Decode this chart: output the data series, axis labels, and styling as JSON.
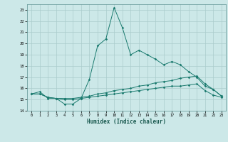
{
  "title": "",
  "xlabel": "Humidex (Indice chaleur)",
  "background_color": "#cce8e8",
  "line_color": "#1a7a6e",
  "grid_color": "#aacccc",
  "xlim": [
    -0.5,
    23.5
  ],
  "ylim": [
    14,
    23.5
  ],
  "yticks": [
    14,
    15,
    16,
    17,
    18,
    19,
    20,
    21,
    22,
    23
  ],
  "xticks": [
    0,
    1,
    2,
    3,
    4,
    5,
    6,
    7,
    8,
    9,
    10,
    11,
    12,
    13,
    14,
    15,
    16,
    17,
    18,
    19,
    20,
    21,
    22,
    23
  ],
  "series": [
    {
      "x": [
        0,
        1,
        2,
        3,
        4,
        5,
        6,
        7,
        8,
        9,
        10,
        11,
        12,
        13,
        14,
        15,
        16,
        17,
        18,
        19,
        20,
        21,
        22,
        23
      ],
      "y": [
        15.5,
        15.7,
        15.1,
        15.1,
        14.6,
        14.6,
        15.1,
        16.8,
        19.8,
        20.4,
        23.2,
        21.4,
        19.0,
        19.4,
        19.0,
        18.6,
        18.1,
        18.4,
        18.1,
        17.5,
        17.0,
        16.2,
        15.9,
        15.3
      ]
    },
    {
      "x": [
        0,
        1,
        2,
        3,
        4,
        5,
        6,
        7,
        8,
        9,
        10,
        11,
        12,
        13,
        14,
        15,
        16,
        17,
        18,
        19,
        20,
        21,
        22,
        23
      ],
      "y": [
        15.5,
        15.5,
        15.2,
        15.1,
        15.1,
        15.1,
        15.2,
        15.3,
        15.5,
        15.6,
        15.8,
        15.9,
        16.0,
        16.2,
        16.3,
        16.5,
        16.6,
        16.7,
        16.9,
        17.0,
        17.1,
        16.4,
        15.9,
        15.3
      ]
    },
    {
      "x": [
        0,
        1,
        2,
        3,
        4,
        5,
        6,
        7,
        8,
        9,
        10,
        11,
        12,
        13,
        14,
        15,
        16,
        17,
        18,
        19,
        20,
        21,
        22,
        23
      ],
      "y": [
        15.5,
        15.5,
        15.2,
        15.1,
        15.0,
        15.0,
        15.1,
        15.2,
        15.3,
        15.4,
        15.5,
        15.6,
        15.7,
        15.8,
        15.9,
        16.0,
        16.1,
        16.2,
        16.2,
        16.3,
        16.4,
        15.8,
        15.4,
        15.2
      ]
    }
  ]
}
